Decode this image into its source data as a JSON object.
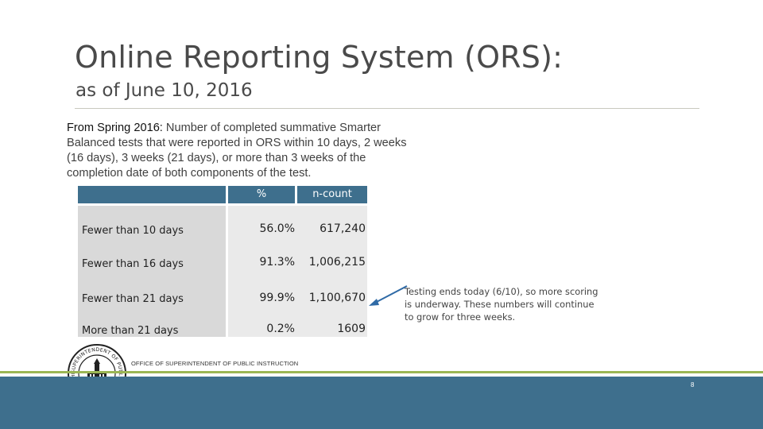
{
  "slide": {
    "title": "Online Reporting System (ORS):",
    "subtitle": "as of June 10, 2016",
    "intro_lead": "From Spring 2016:",
    "intro_text": " Number of completed summative Smarter Balanced tests that were reported in ORS within 10 days, 2 weeks (16 days), 3 weeks (21 days), or more than 3 weeks of the completion date of both components of the test."
  },
  "table": {
    "headers": {
      "label": "",
      "pct": "%",
      "count": "n-count"
    },
    "rows": [
      {
        "label": "Fewer than 10 days",
        "pct": "56.0%",
        "count": "617,240"
      },
      {
        "label": "Fewer than 16 days",
        "pct": "91.3%",
        "count": "1,006,215"
      },
      {
        "label": "Fewer than 21 days",
        "pct": "99.9%",
        "count": "1,100,670"
      },
      {
        "label": "More than 21 days",
        "pct": "0.2%",
        "count": "1609"
      }
    ]
  },
  "note": "Testing ends today (6/10), so more scoring is underway.  These numbers will continue to grow for three weeks.",
  "footer": {
    "office": "OFFICE OF SUPERINTENDENT OF PUBLIC INSTRUCTION",
    "page_number": "8",
    "seal_text": "SUPERINTENDENT OF PUBLIC INSTRUCTION • WASHINGTON STATE",
    "seal_icon": "osp-seal-icon"
  },
  "colors": {
    "header_blue": "#3e6f8d",
    "accent_green": "#9bb654",
    "arrow_blue": "#2f6aa6"
  }
}
